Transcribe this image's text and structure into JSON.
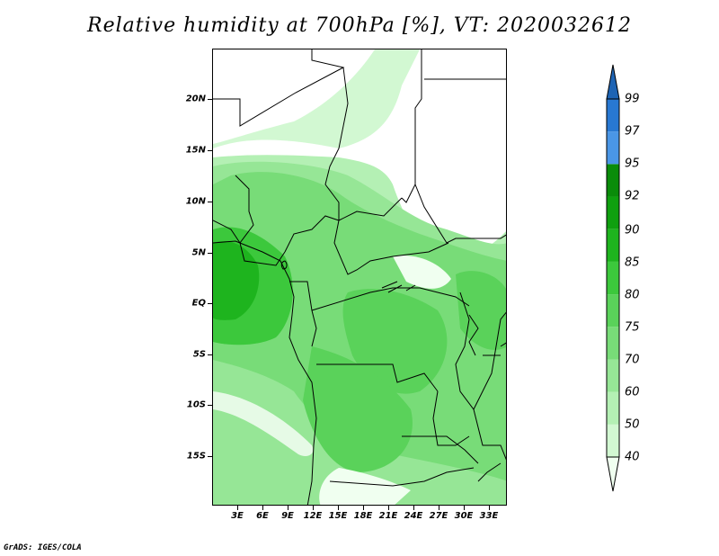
{
  "title": "Relative humidity at 700hPa [%], VT: 2020032612",
  "credit": "GrADS: IGES/COLA",
  "latitude_labels": [
    "20N",
    "15N",
    "10N",
    "5N",
    "EQ",
    "5S",
    "10S",
    "15S"
  ],
  "longitude_labels": [
    "3E",
    "6E",
    "9E",
    "12E",
    "15E",
    "18E",
    "21E",
    "24E",
    "27E",
    "30E",
    "33E"
  ],
  "colorbar": {
    "levels": [
      "40",
      "50",
      "60",
      "70",
      "75",
      "80",
      "85",
      "90",
      "92",
      "95",
      "97",
      "99"
    ],
    "colors": [
      "#f0fff0",
      "#d2f8d2",
      "#b4f0b4",
      "#96e696",
      "#78dc78",
      "#5ad25a",
      "#3cc83c",
      "#1eb41e",
      "#0fa00f",
      "#0a8c0a",
      "#4a96e6",
      "#2878d2",
      "#1e64b4"
    ]
  }
}
